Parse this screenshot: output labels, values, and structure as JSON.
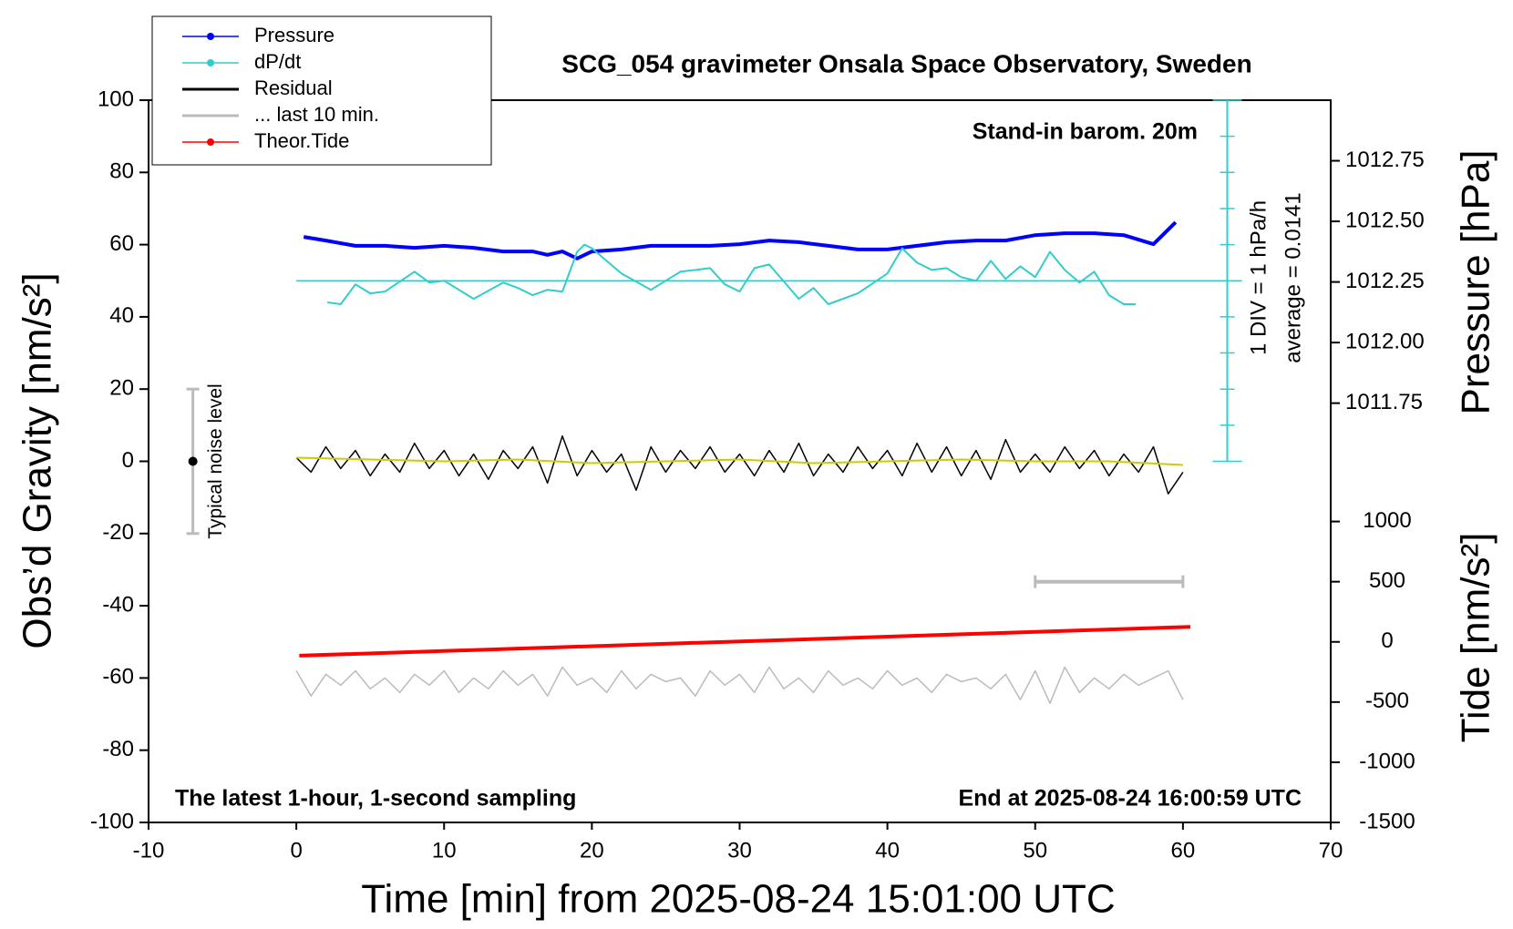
{
  "chart_data": {
    "type": "line",
    "title": "SCG_054 gravimeter Onsala Space Observatory, Sweden",
    "x_label": "Time [min] from 2025-08-24 15:01:00 UTC",
    "y_label": "Obs’d Gravity [nm/s²]",
    "y2_label": "Pressure [hPa]",
    "y3_label": "Tide [nm/s²]",
    "annotations": {
      "station_note": "Stand-in barom. 20m",
      "bottom_left": "The latest 1-hour, 1-second sampling",
      "bottom_right": "End at 2025-08-24 16:00:59 UTC",
      "dpdt_div": "1 DIV = 1 hPa/h",
      "dpdt_average": "average = 0.0141",
      "noise_label": "Typical noise level"
    },
    "xlim": [
      -10,
      70
    ],
    "xticks": [
      -10,
      0,
      10,
      20,
      30,
      40,
      50,
      60,
      70
    ],
    "ylim": [
      -100,
      100
    ],
    "yticks": [
      -100,
      -80,
      -60,
      -40,
      -20,
      0,
      20,
      40,
      60,
      80,
      100
    ],
    "y2lim": [
      1010.02,
      1013.0
    ],
    "y2ticks": [
      {
        "value": 1011.75,
        "label": "1011.75"
      },
      {
        "value": 1012.0,
        "label": "1012.00"
      },
      {
        "value": 1012.25,
        "label": "1012.25"
      },
      {
        "value": 1012.5,
        "label": "1012.50"
      },
      {
        "value": 1012.75,
        "label": "1012.75"
      }
    ],
    "y3lim": [
      -1500,
      4500
    ],
    "y3ticks": [
      -1500,
      -1000,
      -500,
      0,
      500,
      1000
    ],
    "noise_level": {
      "x": -7,
      "value": 0,
      "error": 20,
      "color": "#bbbbbb"
    },
    "dpdt_scale": {
      "x": 63,
      "ticks": [
        0,
        10,
        20,
        30,
        40,
        50,
        60,
        70,
        80,
        90,
        100
      ],
      "reference": 50,
      "reference_from": 0,
      "color": "#33cccc"
    },
    "series": [
      {
        "name": "Pressure",
        "color": "#0000ff",
        "axis": "y2",
        "marker": true,
        "width": 4,
        "x": [
          0.5,
          2,
          4,
          6,
          8,
          10,
          12,
          14,
          16,
          17,
          18,
          19,
          20,
          22,
          24,
          26,
          28,
          30,
          32,
          34,
          36,
          38,
          40,
          42,
          44,
          46,
          48,
          50,
          52,
          54,
          56,
          58,
          59.5
        ],
        "values": [
          1012.436,
          1012.421,
          1012.399,
          1012.399,
          1012.391,
          1012.399,
          1012.391,
          1012.376,
          1012.376,
          1012.362,
          1012.376,
          1012.347,
          1012.376,
          1012.384,
          1012.399,
          1012.399,
          1012.399,
          1012.406,
          1012.421,
          1012.414,
          1012.399,
          1012.384,
          1012.384,
          1012.399,
          1012.414,
          1012.421,
          1012.421,
          1012.443,
          1012.451,
          1012.451,
          1012.443,
          1012.406,
          1012.496
        ]
      },
      {
        "name": "dP/dt",
        "color": "#33cccc",
        "axis": "y",
        "marker": true,
        "width": 2,
        "x": [
          2.1,
          3,
          4,
          5,
          6,
          8,
          9,
          10,
          12,
          14,
          15,
          16,
          17,
          18,
          19,
          19.5,
          20,
          22,
          24,
          26,
          28,
          29,
          30,
          31,
          32,
          34,
          35,
          36,
          38,
          40,
          41,
          42,
          43,
          44,
          45,
          46,
          47,
          48,
          49,
          50,
          51,
          52,
          53,
          54,
          55,
          56,
          56.8
        ],
        "values": [
          44,
          43.5,
          49,
          46.5,
          47,
          52.5,
          49.5,
          50,
          45,
          49.5,
          48,
          46,
          47.5,
          47,
          58,
          60,
          59,
          52,
          47.5,
          52.5,
          53.5,
          49,
          47,
          53.5,
          54.5,
          45,
          48,
          43.5,
          46.5,
          52,
          59,
          55,
          53,
          53.5,
          51,
          50,
          55.5,
          50.5,
          54,
          51,
          58,
          53,
          49.5,
          52.5,
          46,
          43.5,
          43.5
        ]
      },
      {
        "name": "Residual",
        "color": "#000000",
        "axis": "y",
        "marker": false,
        "width": 1.5,
        "x": [
          0,
          1,
          2,
          3,
          4,
          5,
          6,
          7,
          8,
          9,
          10,
          11,
          12,
          13,
          14,
          15,
          16,
          17,
          18,
          19,
          20,
          21,
          22,
          23,
          24,
          25,
          26,
          27,
          28,
          29,
          30,
          31,
          32,
          33,
          34,
          35,
          36,
          37,
          38,
          39,
          40,
          41,
          42,
          43,
          44,
          45,
          46,
          47,
          48,
          49,
          50,
          51,
          52,
          53,
          54,
          55,
          56,
          57,
          58,
          59,
          60
        ],
        "values": [
          1,
          -3,
          4,
          -2,
          3,
          -4,
          2,
          -3,
          5,
          -2,
          3,
          -4,
          2,
          -5,
          3,
          -2,
          4,
          -6,
          7,
          -4,
          3,
          -3,
          2,
          -8,
          4,
          -3,
          3,
          -2,
          4,
          -3,
          2,
          -4,
          3,
          -3,
          5,
          -4,
          2,
          -3,
          4,
          -2,
          3,
          -4,
          5,
          -3,
          4,
          -4,
          3,
          -5,
          6,
          -3,
          2,
          -3,
          4,
          -2,
          3,
          -4,
          2,
          -3,
          4,
          -9,
          -3
        ]
      },
      {
        "name": "... last 10 min.",
        "color": "#bbbbbb",
        "axis": "y3",
        "marker": false,
        "width": 4,
        "caps": true,
        "x": [
          50,
          60
        ],
        "values": [
          500,
          500
        ]
      },
      {
        "name": "Theor.Tide",
        "color": "#ff0000",
        "axis": "y3",
        "marker": true,
        "width": 4,
        "x": [
          0.2,
          60.5
        ],
        "values": [
          -115,
          125
        ]
      },
      {
        "color": "#cccc00",
        "axis": "y",
        "width": 2,
        "x": [
          0,
          5,
          10,
          15,
          20,
          25,
          30,
          35,
          40,
          45,
          50,
          55,
          60
        ],
        "values": [
          1,
          0.5,
          0,
          0.5,
          -0.5,
          0,
          0.5,
          -0.5,
          0,
          0.5,
          0,
          0,
          -1
        ]
      },
      {
        "color": "#bbbbbb",
        "axis": "y",
        "width": 1.5,
        "x": [
          0,
          1,
          2,
          3,
          4,
          5,
          6,
          7,
          8,
          9,
          10,
          11,
          12,
          13,
          14,
          15,
          16,
          17,
          18,
          19,
          20,
          21,
          22,
          23,
          24,
          25,
          26,
          27,
          28,
          29,
          30,
          31,
          32,
          33,
          34,
          35,
          36,
          37,
          38,
          39,
          40,
          41,
          42,
          43,
          44,
          45,
          46,
          47,
          48,
          49,
          50,
          51,
          52,
          53,
          54,
          55,
          56,
          57,
          58,
          59,
          60
        ],
        "values": [
          -58,
          -65,
          -59,
          -62,
          -58,
          -63,
          -60,
          -64,
          -59,
          -62,
          -58,
          -64,
          -60,
          -63,
          -58,
          -62,
          -59,
          -65,
          -57,
          -62,
          -60,
          -64,
          -58,
          -63,
          -59,
          -61,
          -60,
          -65,
          -58,
          -62,
          -59,
          -64,
          -57,
          -63,
          -60,
          -64,
          -58,
          -62,
          -60,
          -63,
          -58,
          -62,
          -60,
          -64,
          -59,
          -61,
          -60,
          -63,
          -59,
          -66,
          -58,
          -67,
          -57,
          -64,
          -60,
          -63,
          -59,
          -62,
          -60,
          -58,
          -66
        ]
      }
    ]
  }
}
